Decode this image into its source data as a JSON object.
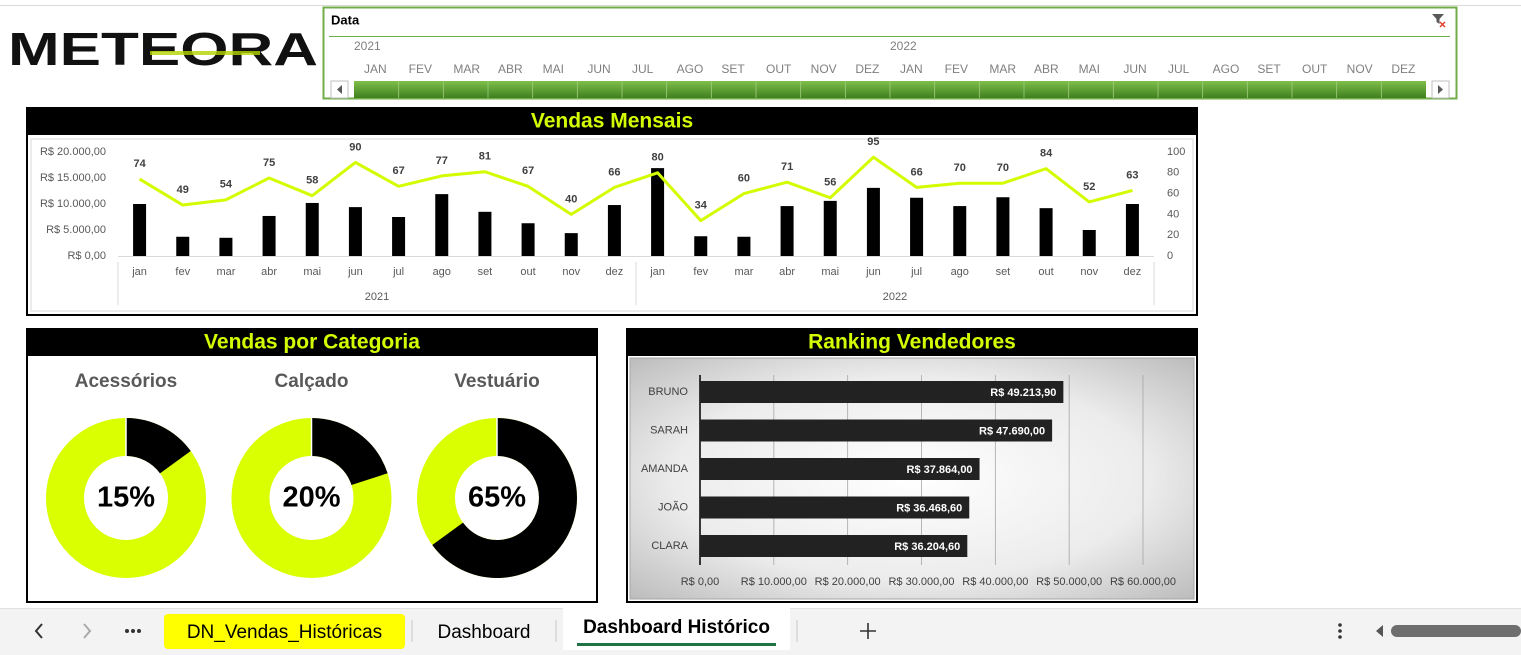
{
  "logo": "METEORA",
  "slicer": {
    "title": "Data",
    "years": [
      "2021",
      "2022"
    ],
    "months": [
      "JAN",
      "FEV",
      "MAR",
      "ABR",
      "MAI",
      "JUN",
      "JUL",
      "AGO",
      "SET",
      "OUT",
      "NOV",
      "DEZ",
      "JAN",
      "FEV",
      "MAR",
      "ABR",
      "MAI",
      "JUN",
      "JUL",
      "AGO",
      "SET",
      "OUT",
      "NOV",
      "DEZ"
    ]
  },
  "chart_data": [
    {
      "type": "combo",
      "title": "Vendas Mensais",
      "categories": [
        "jan",
        "fev",
        "mar",
        "abr",
        "mai",
        "jun",
        "jul",
        "ago",
        "set",
        "out",
        "nov",
        "dez",
        "jan",
        "fev",
        "mar",
        "abr",
        "mai",
        "jun",
        "jul",
        "ago",
        "set",
        "out",
        "nov",
        "dez"
      ],
      "category_groups": [
        "2021",
        "2022"
      ],
      "series": [
        {
          "type": "bar",
          "color": "#000000",
          "values": [
            10000,
            3700,
            3500,
            7700,
            10200,
            9400,
            7500,
            11900,
            8500,
            6300,
            4400,
            9800,
            16900,
            3800,
            3700,
            9600,
            10600,
            13100,
            11200,
            9600,
            11300,
            9200,
            5000,
            10000
          ]
        },
        {
          "type": "line",
          "axis": "y2",
          "color": "#d4fc00",
          "values": [
            74,
            49,
            54,
            75,
            58,
            90,
            67,
            77,
            81,
            67,
            40,
            66,
            80,
            34,
            60,
            71,
            56,
            95,
            66,
            70,
            70,
            84,
            52,
            63
          ]
        }
      ],
      "ylim": [
        0,
        20000
      ],
      "yticks": [
        {
          "value": 0,
          "label": "R$ 0,00"
        },
        {
          "value": 5000,
          "label": "R$ 5.000,00"
        },
        {
          "value": 10000,
          "label": "R$ 10.000,00"
        },
        {
          "value": 15000,
          "label": "R$ 15.000,00"
        },
        {
          "value": 20000,
          "label": "R$ 20.000,00"
        }
      ],
      "y2lim": [
        0,
        100
      ],
      "y2ticks": [
        0,
        20,
        40,
        60,
        80,
        100
      ]
    },
    {
      "type": "donut",
      "title": "Vendas por Categoria",
      "categories": [
        "Acessórios",
        "Calçado",
        "Vestuário"
      ],
      "values": [
        15,
        20,
        65
      ],
      "value_labels": [
        "15%",
        "20%",
        "65%"
      ],
      "color": "#000000",
      "track_color": "#d9ff00"
    },
    {
      "type": "barh",
      "title": "Ranking Vendedores",
      "categories": [
        "BRUNO",
        "SARAH",
        "AMANDA",
        "JOÃO",
        "CLARA"
      ],
      "values": [
        49213.9,
        47690,
        37864,
        36468.6,
        36204.6
      ],
      "value_labels": [
        "R$ 49.213,90",
        "R$ 47.690,00",
        "R$ 37.864,00",
        "R$ 36.468,60",
        "R$ 36.204,60"
      ],
      "color": "#222222",
      "xlim": [
        0,
        60000
      ],
      "xticks": [
        {
          "value": 0,
          "label": "R$ 0,00"
        },
        {
          "value": 10000,
          "label": "R$ 10.000,00"
        },
        {
          "value": 20000,
          "label": "R$ 20.000,00"
        },
        {
          "value": 30000,
          "label": "R$ 30.000,00"
        },
        {
          "value": 40000,
          "label": "R$ 40.000,00"
        },
        {
          "value": 50000,
          "label": "R$ 50.000,00"
        },
        {
          "value": 60000,
          "label": "R$ 60.000,00"
        }
      ],
      "grid": true
    }
  ],
  "sheet_tabs": {
    "tabs": [
      "DN_Vendas_Históricas",
      "Dashboard",
      "Dashboard Histórico"
    ],
    "active": 2,
    "highlight_tab": 0,
    "highlight_color": "#ffff00"
  }
}
